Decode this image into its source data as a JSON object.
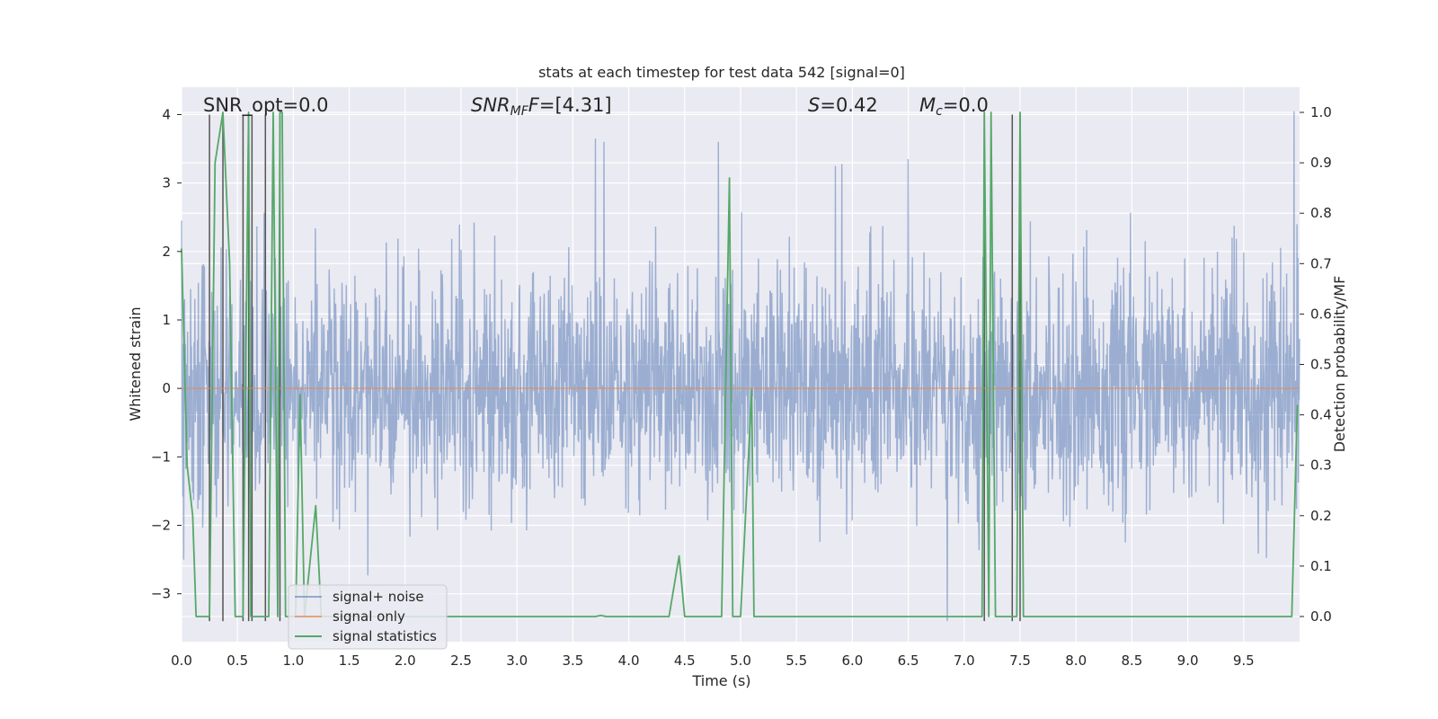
{
  "chart_data": {
    "type": "line",
    "title": "stats at each timestep for test data 542 [signal=0]",
    "xlabel": "Time (s)",
    "ylabel": "Whitened strain",
    "y2label": "Detection probability/MF",
    "xlim": [
      0,
      10
    ],
    "ylim": [
      -3.7,
      4.4
    ],
    "y2lim": [
      -0.05,
      1.05
    ],
    "grid": true,
    "x_ticks": [
      "0.0",
      "0.5",
      "1.0",
      "1.5",
      "2.0",
      "2.5",
      "3.0",
      "3.5",
      "4.0",
      "4.5",
      "5.0",
      "5.5",
      "6.0",
      "6.5",
      "7.0",
      "7.5",
      "8.0",
      "8.5",
      "9.0",
      "9.5"
    ],
    "y_ticks": [
      "−3",
      "−2",
      "−1",
      "0",
      "1",
      "2",
      "3",
      "4"
    ],
    "y2_ticks": [
      "0.0",
      "0.1",
      "0.2",
      "0.3",
      "0.4",
      "0.5",
      "0.6",
      "0.7",
      "0.8",
      "0.9",
      "1.0"
    ],
    "annotations": {
      "snr_opt": "SNR_opt=0.0",
      "snr_mf_base": "SNR",
      "snr_mf_sub": "MF",
      "snr_mf_val": "=[4.31]",
      "s_sym": "S",
      "s_val": "=0.42",
      "mc_sym": "M",
      "mc_sub": "c",
      "mc_val": "=0.0"
    },
    "legend": {
      "placement": "lower-left",
      "entries": [
        "signal+ noise",
        "signal only",
        "signal statistics"
      ]
    },
    "series": [
      {
        "name": "signal+ noise",
        "axis": "left",
        "color": "#4c72b0",
        "noise_envelope": {
          "min": -3.4,
          "max": 4.05,
          "typical_low": -1.9,
          "typical_high": 1.8
        },
        "notable_peaks": [
          {
            "x": 0.0,
            "y": 2.45
          },
          {
            "x": 0.02,
            "y": -2.5
          },
          {
            "x": 3.7,
            "y": 3.65
          },
          {
            "x": 3.78,
            "y": 3.6
          },
          {
            "x": 4.8,
            "y": 3.6
          },
          {
            "x": 5.85,
            "y": 3.25
          },
          {
            "x": 6.5,
            "y": 3.35
          },
          {
            "x": 6.85,
            "y": -3.4
          },
          {
            "x": 9.95,
            "y": 4.05
          }
        ]
      },
      {
        "name": "signal only",
        "axis": "left",
        "color": "#dd8452",
        "x": [
          0,
          10
        ],
        "y": [
          0,
          0
        ]
      },
      {
        "name": "signal statistics",
        "axis": "right",
        "color": "#55a868",
        "x": [
          0.0,
          0.05,
          0.1,
          0.13,
          0.2,
          0.25,
          0.3,
          0.37,
          0.43,
          0.48,
          0.55,
          0.6,
          0.62,
          0.67,
          0.7,
          0.75,
          0.78,
          0.82,
          0.86,
          0.88,
          0.9,
          0.93,
          0.96,
          1.02,
          1.06,
          1.1,
          1.2,
          1.25,
          1.3,
          1.4,
          3.7,
          3.75,
          3.8,
          4.36,
          4.45,
          4.5,
          4.83,
          4.9,
          4.93,
          5.0,
          5.1,
          5.12,
          5.2,
          7.16,
          7.18,
          7.22,
          7.24,
          7.28,
          7.32,
          7.36,
          7.44,
          7.47,
          7.5,
          7.53,
          7.58,
          9.88,
          9.93,
          9.98
        ],
        "y": [
          0.73,
          0.3,
          0.2,
          0.0,
          0.0,
          0.0,
          0.9,
          1.0,
          0.7,
          0.0,
          0.0,
          1.0,
          0.0,
          0.0,
          0.0,
          0.0,
          0.0,
          1.0,
          0.0,
          1.0,
          1.0,
          0.0,
          0.0,
          0.0,
          0.44,
          0.0,
          0.22,
          0.0,
          0.0,
          0.0,
          0.0,
          0.002,
          0.0,
          0.0,
          0.12,
          0.0,
          0.0,
          0.87,
          0.0,
          0.0,
          0.45,
          0.0,
          0.0,
          0.0,
          1.0,
          0.0,
          1.0,
          0.0,
          0.0,
          0.0,
          0.0,
          0.0,
          1.0,
          0.0,
          0.0,
          0.0,
          0.0,
          0.42
        ]
      }
    ],
    "vertical_markers": {
      "color": "#555555",
      "x": [
        0.25,
        0.37,
        0.55,
        0.6,
        0.63,
        0.75,
        0.88,
        7.18,
        7.43,
        7.5
      ]
    }
  }
}
